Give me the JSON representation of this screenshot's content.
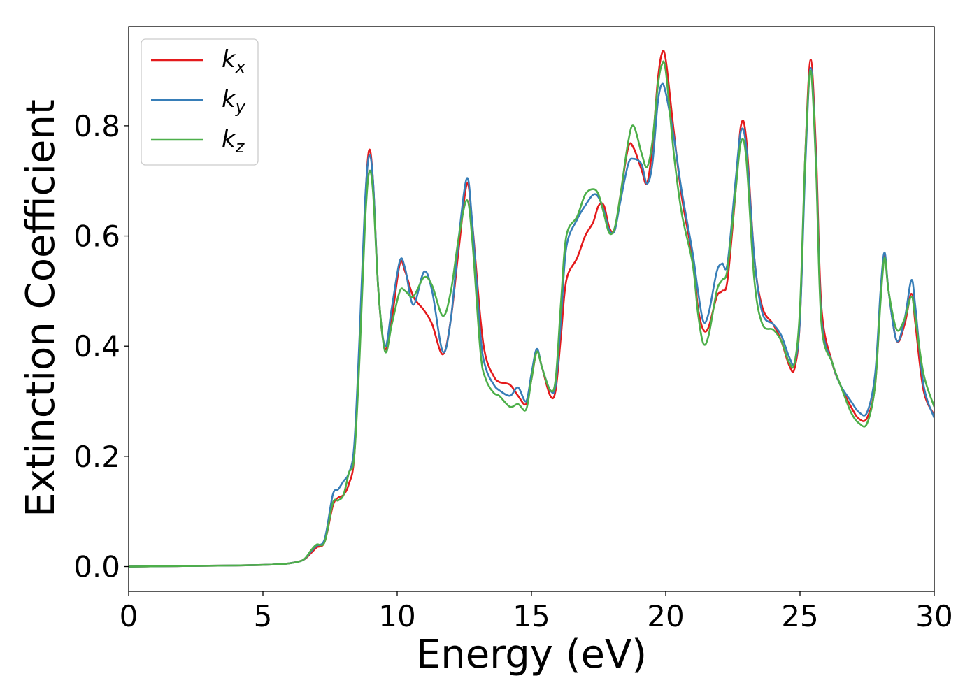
{
  "chart_data": {
    "type": "line",
    "title": "",
    "xlabel": "Energy (eV)",
    "ylabel": "Extinction Coefficient",
    "xlim": [
      0,
      30
    ],
    "ylim": [
      -0.045,
      0.98
    ],
    "grid": false,
    "legend_position": "top-left",
    "x_ticks": [
      0,
      5,
      10,
      15,
      20,
      25,
      30
    ],
    "y_ticks": [
      0.0,
      0.2,
      0.4,
      0.6,
      0.8
    ],
    "x_tick_labels": [
      "0",
      "5",
      "10",
      "15",
      "20",
      "25",
      "30"
    ],
    "y_tick_labels": [
      "0.0",
      "0.2",
      "0.4",
      "0.6",
      "0.8"
    ],
    "series": [
      {
        "name": "k_x",
        "legend_base": "k",
        "legend_sub": "x",
        "color": "#e41a1c",
        "points": [
          [
            0,
            0.0
          ],
          [
            1,
            0.0005
          ],
          [
            2,
            0.001
          ],
          [
            3,
            0.0015
          ],
          [
            4,
            0.002
          ],
          [
            5,
            0.003
          ],
          [
            5.5,
            0.004
          ],
          [
            6,
            0.006
          ],
          [
            6.5,
            0.012
          ],
          [
            6.8,
            0.025
          ],
          [
            7.0,
            0.035
          ],
          [
            7.3,
            0.045
          ],
          [
            7.6,
            0.11
          ],
          [
            7.8,
            0.125
          ],
          [
            8.0,
            0.13
          ],
          [
            8.2,
            0.15
          ],
          [
            8.4,
            0.2
          ],
          [
            8.6,
            0.4
          ],
          [
            8.8,
            0.65
          ],
          [
            8.95,
            0.755
          ],
          [
            9.1,
            0.7
          ],
          [
            9.3,
            0.5
          ],
          [
            9.55,
            0.395
          ],
          [
            9.8,
            0.45
          ],
          [
            10.1,
            0.55
          ],
          [
            10.3,
            0.535
          ],
          [
            10.6,
            0.49
          ],
          [
            11.0,
            0.465
          ],
          [
            11.3,
            0.44
          ],
          [
            11.7,
            0.385
          ],
          [
            12.0,
            0.45
          ],
          [
            12.3,
            0.58
          ],
          [
            12.6,
            0.695
          ],
          [
            12.8,
            0.62
          ],
          [
            13.1,
            0.45
          ],
          [
            13.3,
            0.38
          ],
          [
            13.6,
            0.345
          ],
          [
            13.8,
            0.335
          ],
          [
            14.2,
            0.33
          ],
          [
            14.5,
            0.31
          ],
          [
            14.8,
            0.295
          ],
          [
            15.0,
            0.34
          ],
          [
            15.2,
            0.39
          ],
          [
            15.4,
            0.36
          ],
          [
            15.7,
            0.31
          ],
          [
            15.9,
            0.32
          ],
          [
            16.1,
            0.42
          ],
          [
            16.3,
            0.52
          ],
          [
            16.7,
            0.56
          ],
          [
            17.0,
            0.6
          ],
          [
            17.3,
            0.625
          ],
          [
            17.5,
            0.655
          ],
          [
            17.7,
            0.655
          ],
          [
            17.9,
            0.615
          ],
          [
            18.1,
            0.61
          ],
          [
            18.3,
            0.67
          ],
          [
            18.6,
            0.76
          ],
          [
            18.8,
            0.76
          ],
          [
            19.1,
            0.72
          ],
          [
            19.3,
            0.695
          ],
          [
            19.5,
            0.76
          ],
          [
            19.7,
            0.88
          ],
          [
            19.85,
            0.93
          ],
          [
            20.0,
            0.92
          ],
          [
            20.3,
            0.79
          ],
          [
            20.6,
            0.67
          ],
          [
            21.0,
            0.56
          ],
          [
            21.2,
            0.47
          ],
          [
            21.4,
            0.43
          ],
          [
            21.6,
            0.435
          ],
          [
            21.9,
            0.49
          ],
          [
            22.1,
            0.5
          ],
          [
            22.3,
            0.52
          ],
          [
            22.6,
            0.68
          ],
          [
            22.8,
            0.8
          ],
          [
            23.0,
            0.775
          ],
          [
            23.3,
            0.56
          ],
          [
            23.6,
            0.47
          ],
          [
            24.0,
            0.44
          ],
          [
            24.3,
            0.41
          ],
          [
            24.6,
            0.365
          ],
          [
            24.8,
            0.36
          ],
          [
            25.0,
            0.45
          ],
          [
            25.2,
            0.75
          ],
          [
            25.4,
            0.92
          ],
          [
            25.6,
            0.75
          ],
          [
            25.8,
            0.47
          ],
          [
            26.2,
            0.37
          ],
          [
            26.5,
            0.33
          ],
          [
            26.9,
            0.29
          ],
          [
            27.2,
            0.268
          ],
          [
            27.5,
            0.27
          ],
          [
            27.8,
            0.33
          ],
          [
            28.0,
            0.49
          ],
          [
            28.15,
            0.565
          ],
          [
            28.3,
            0.5
          ],
          [
            28.6,
            0.41
          ],
          [
            28.9,
            0.44
          ],
          [
            29.15,
            0.495
          ],
          [
            29.3,
            0.44
          ],
          [
            29.6,
            0.32
          ],
          [
            30.0,
            0.275
          ]
        ]
      },
      {
        "name": "k_y",
        "legend_base": "k",
        "legend_sub": "y",
        "color": "#377eb8",
        "points": [
          [
            0,
            0.0
          ],
          [
            1,
            0.0005
          ],
          [
            2,
            0.001
          ],
          [
            3,
            0.0015
          ],
          [
            4,
            0.002
          ],
          [
            5,
            0.003
          ],
          [
            5.5,
            0.004
          ],
          [
            6,
            0.006
          ],
          [
            6.5,
            0.012
          ],
          [
            6.8,
            0.028
          ],
          [
            7.0,
            0.038
          ],
          [
            7.3,
            0.05
          ],
          [
            7.6,
            0.13
          ],
          [
            7.8,
            0.14
          ],
          [
            8.0,
            0.155
          ],
          [
            8.2,
            0.17
          ],
          [
            8.4,
            0.22
          ],
          [
            8.6,
            0.42
          ],
          [
            8.8,
            0.66
          ],
          [
            8.95,
            0.745
          ],
          [
            9.1,
            0.7
          ],
          [
            9.3,
            0.5
          ],
          [
            9.55,
            0.4
          ],
          [
            9.8,
            0.47
          ],
          [
            10.1,
            0.555
          ],
          [
            10.3,
            0.54
          ],
          [
            10.6,
            0.475
          ],
          [
            11.0,
            0.535
          ],
          [
            11.3,
            0.5
          ],
          [
            11.7,
            0.39
          ],
          [
            12.0,
            0.45
          ],
          [
            12.3,
            0.6
          ],
          [
            12.6,
            0.705
          ],
          [
            12.8,
            0.62
          ],
          [
            13.1,
            0.42
          ],
          [
            13.3,
            0.36
          ],
          [
            13.6,
            0.33
          ],
          [
            13.8,
            0.32
          ],
          [
            14.2,
            0.31
          ],
          [
            14.5,
            0.325
          ],
          [
            14.8,
            0.3
          ],
          [
            15.0,
            0.35
          ],
          [
            15.2,
            0.395
          ],
          [
            15.4,
            0.36
          ],
          [
            15.7,
            0.32
          ],
          [
            15.9,
            0.33
          ],
          [
            16.1,
            0.45
          ],
          [
            16.3,
            0.58
          ],
          [
            16.7,
            0.63
          ],
          [
            17.0,
            0.655
          ],
          [
            17.3,
            0.675
          ],
          [
            17.5,
            0.67
          ],
          [
            17.7,
            0.645
          ],
          [
            17.9,
            0.61
          ],
          [
            18.1,
            0.61
          ],
          [
            18.3,
            0.66
          ],
          [
            18.6,
            0.73
          ],
          [
            18.8,
            0.74
          ],
          [
            19.1,
            0.73
          ],
          [
            19.3,
            0.695
          ],
          [
            19.5,
            0.73
          ],
          [
            19.7,
            0.84
          ],
          [
            19.85,
            0.875
          ],
          [
            20.0,
            0.86
          ],
          [
            20.3,
            0.78
          ],
          [
            20.6,
            0.68
          ],
          [
            21.0,
            0.57
          ],
          [
            21.2,
            0.5
          ],
          [
            21.4,
            0.445
          ],
          [
            21.6,
            0.46
          ],
          [
            21.9,
            0.535
          ],
          [
            22.1,
            0.55
          ],
          [
            22.3,
            0.55
          ],
          [
            22.6,
            0.7
          ],
          [
            22.8,
            0.79
          ],
          [
            23.0,
            0.76
          ],
          [
            23.3,
            0.56
          ],
          [
            23.6,
            0.46
          ],
          [
            24.0,
            0.44
          ],
          [
            24.3,
            0.42
          ],
          [
            24.6,
            0.38
          ],
          [
            24.8,
            0.37
          ],
          [
            25.0,
            0.45
          ],
          [
            25.2,
            0.73
          ],
          [
            25.4,
            0.905
          ],
          [
            25.6,
            0.73
          ],
          [
            25.8,
            0.45
          ],
          [
            26.2,
            0.37
          ],
          [
            26.5,
            0.33
          ],
          [
            26.9,
            0.3
          ],
          [
            27.2,
            0.28
          ],
          [
            27.5,
            0.28
          ],
          [
            27.8,
            0.35
          ],
          [
            28.0,
            0.5
          ],
          [
            28.15,
            0.57
          ],
          [
            28.3,
            0.5
          ],
          [
            28.6,
            0.41
          ],
          [
            28.9,
            0.45
          ],
          [
            29.15,
            0.52
          ],
          [
            29.3,
            0.47
          ],
          [
            29.6,
            0.33
          ],
          [
            30.0,
            0.27
          ]
        ]
      },
      {
        "name": "k_z",
        "legend_base": "k",
        "legend_sub": "z",
        "color": "#4daf4a",
        "points": [
          [
            0,
            0.0
          ],
          [
            1,
            0.0005
          ],
          [
            2,
            0.001
          ],
          [
            3,
            0.0015
          ],
          [
            4,
            0.002
          ],
          [
            5,
            0.003
          ],
          [
            5.5,
            0.004
          ],
          [
            6,
            0.006
          ],
          [
            6.5,
            0.012
          ],
          [
            6.8,
            0.03
          ],
          [
            7.0,
            0.04
          ],
          [
            7.3,
            0.045
          ],
          [
            7.6,
            0.115
          ],
          [
            7.8,
            0.12
          ],
          [
            8.0,
            0.13
          ],
          [
            8.2,
            0.17
          ],
          [
            8.4,
            0.2
          ],
          [
            8.6,
            0.38
          ],
          [
            8.8,
            0.62
          ],
          [
            8.95,
            0.715
          ],
          [
            9.1,
            0.68
          ],
          [
            9.3,
            0.5
          ],
          [
            9.55,
            0.39
          ],
          [
            9.8,
            0.44
          ],
          [
            10.1,
            0.5
          ],
          [
            10.3,
            0.5
          ],
          [
            10.6,
            0.49
          ],
          [
            11.0,
            0.525
          ],
          [
            11.3,
            0.51
          ],
          [
            11.7,
            0.455
          ],
          [
            12.0,
            0.5
          ],
          [
            12.3,
            0.6
          ],
          [
            12.6,
            0.665
          ],
          [
            12.8,
            0.59
          ],
          [
            13.1,
            0.39
          ],
          [
            13.3,
            0.34
          ],
          [
            13.6,
            0.315
          ],
          [
            13.8,
            0.31
          ],
          [
            14.2,
            0.29
          ],
          [
            14.5,
            0.295
          ],
          [
            14.8,
            0.285
          ],
          [
            15.0,
            0.34
          ],
          [
            15.2,
            0.39
          ],
          [
            15.4,
            0.36
          ],
          [
            15.7,
            0.32
          ],
          [
            15.9,
            0.34
          ],
          [
            16.1,
            0.48
          ],
          [
            16.3,
            0.6
          ],
          [
            16.7,
            0.635
          ],
          [
            17.0,
            0.675
          ],
          [
            17.3,
            0.685
          ],
          [
            17.5,
            0.675
          ],
          [
            17.7,
            0.64
          ],
          [
            17.9,
            0.605
          ],
          [
            18.1,
            0.615
          ],
          [
            18.3,
            0.67
          ],
          [
            18.6,
            0.77
          ],
          [
            18.8,
            0.8
          ],
          [
            19.1,
            0.75
          ],
          [
            19.3,
            0.725
          ],
          [
            19.5,
            0.77
          ],
          [
            19.7,
            0.87
          ],
          [
            19.85,
            0.91
          ],
          [
            20.0,
            0.9
          ],
          [
            20.3,
            0.75
          ],
          [
            20.6,
            0.64
          ],
          [
            21.0,
            0.55
          ],
          [
            21.2,
            0.46
          ],
          [
            21.4,
            0.405
          ],
          [
            21.6,
            0.42
          ],
          [
            21.9,
            0.5
          ],
          [
            22.1,
            0.52
          ],
          [
            22.3,
            0.54
          ],
          [
            22.6,
            0.68
          ],
          [
            22.8,
            0.77
          ],
          [
            23.0,
            0.74
          ],
          [
            23.3,
            0.52
          ],
          [
            23.6,
            0.44
          ],
          [
            24.0,
            0.43
          ],
          [
            24.3,
            0.41
          ],
          [
            24.6,
            0.37
          ],
          [
            24.8,
            0.37
          ],
          [
            25.0,
            0.47
          ],
          [
            25.2,
            0.75
          ],
          [
            25.4,
            0.9
          ],
          [
            25.6,
            0.72
          ],
          [
            25.8,
            0.44
          ],
          [
            26.2,
            0.37
          ],
          [
            26.5,
            0.33
          ],
          [
            26.9,
            0.28
          ],
          [
            27.2,
            0.26
          ],
          [
            27.5,
            0.26
          ],
          [
            27.8,
            0.33
          ],
          [
            28.0,
            0.48
          ],
          [
            28.15,
            0.56
          ],
          [
            28.3,
            0.5
          ],
          [
            28.6,
            0.43
          ],
          [
            28.9,
            0.45
          ],
          [
            29.15,
            0.49
          ],
          [
            29.3,
            0.45
          ],
          [
            29.6,
            0.35
          ],
          [
            30.0,
            0.29
          ]
        ]
      }
    ]
  }
}
